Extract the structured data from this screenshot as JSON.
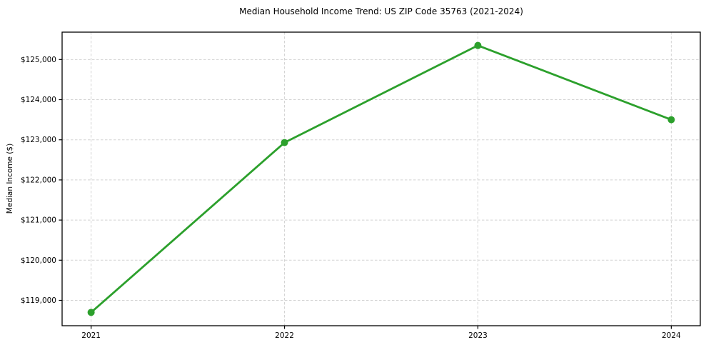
{
  "chart_data": {
    "type": "line",
    "title": "Median Household Income Trend: US ZIP Code 35763 (2021-2024)",
    "xlabel": "",
    "ylabel": "Median Income ($)",
    "categories": [
      "2021",
      "2022",
      "2023",
      "2024"
    ],
    "series": [
      {
        "name": "Median Household Income",
        "values": [
          118700,
          122930,
          125350,
          123500
        ]
      }
    ],
    "y_ticks": [
      119000,
      120000,
      121000,
      122000,
      123000,
      124000,
      125000
    ],
    "y_tick_labels": [
      "$119,000",
      "$120,000",
      "$121,000",
      "$122,000",
      "$123,000",
      "$124,000",
      "$125,000"
    ],
    "ylim": [
      118368,
      125682
    ],
    "grid": true,
    "grid_style": "dashed",
    "legend": "none",
    "colors": {
      "line": "#2ca02c",
      "marker": "#2ca02c",
      "grid": "#d3d3d3",
      "spine": "#000000",
      "text": "#000000",
      "background": "#ffffff"
    }
  }
}
